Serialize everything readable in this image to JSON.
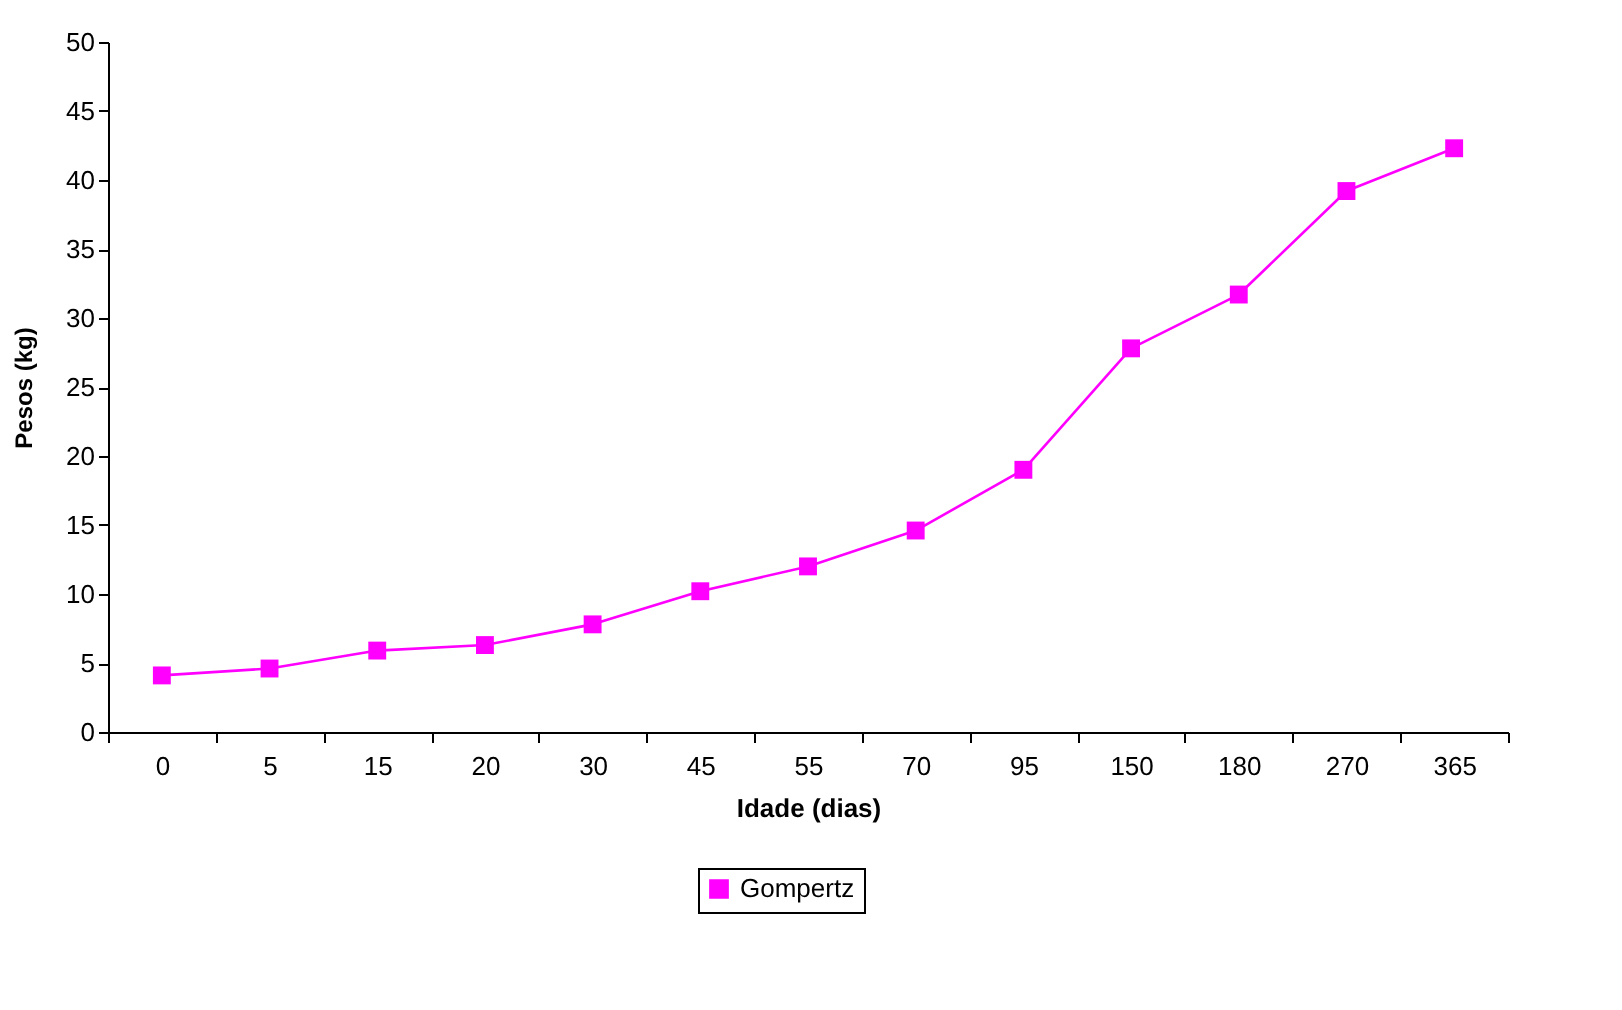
{
  "chart_data": {
    "type": "line",
    "xlabel": "Idade (dias)",
    "ylabel": "Pesos (kg)",
    "categories": [
      "0",
      "5",
      "15",
      "20",
      "30",
      "45",
      "55",
      "70",
      "95",
      "150",
      "180",
      "270",
      "365"
    ],
    "series": [
      {
        "name": "Gompertz",
        "color": "#ff00ff",
        "values": [
          4.1,
          4.6,
          5.9,
          6.3,
          7.8,
          10.2,
          12.0,
          14.6,
          19.0,
          27.8,
          31.7,
          39.2,
          42.3
        ]
      }
    ],
    "ylim": [
      0,
      50
    ],
    "yticks": [
      0,
      5,
      10,
      15,
      20,
      25,
      30,
      35,
      40,
      45,
      50
    ],
    "grid": false,
    "legend": "bottom",
    "marker": "square",
    "line_style": "solid"
  }
}
